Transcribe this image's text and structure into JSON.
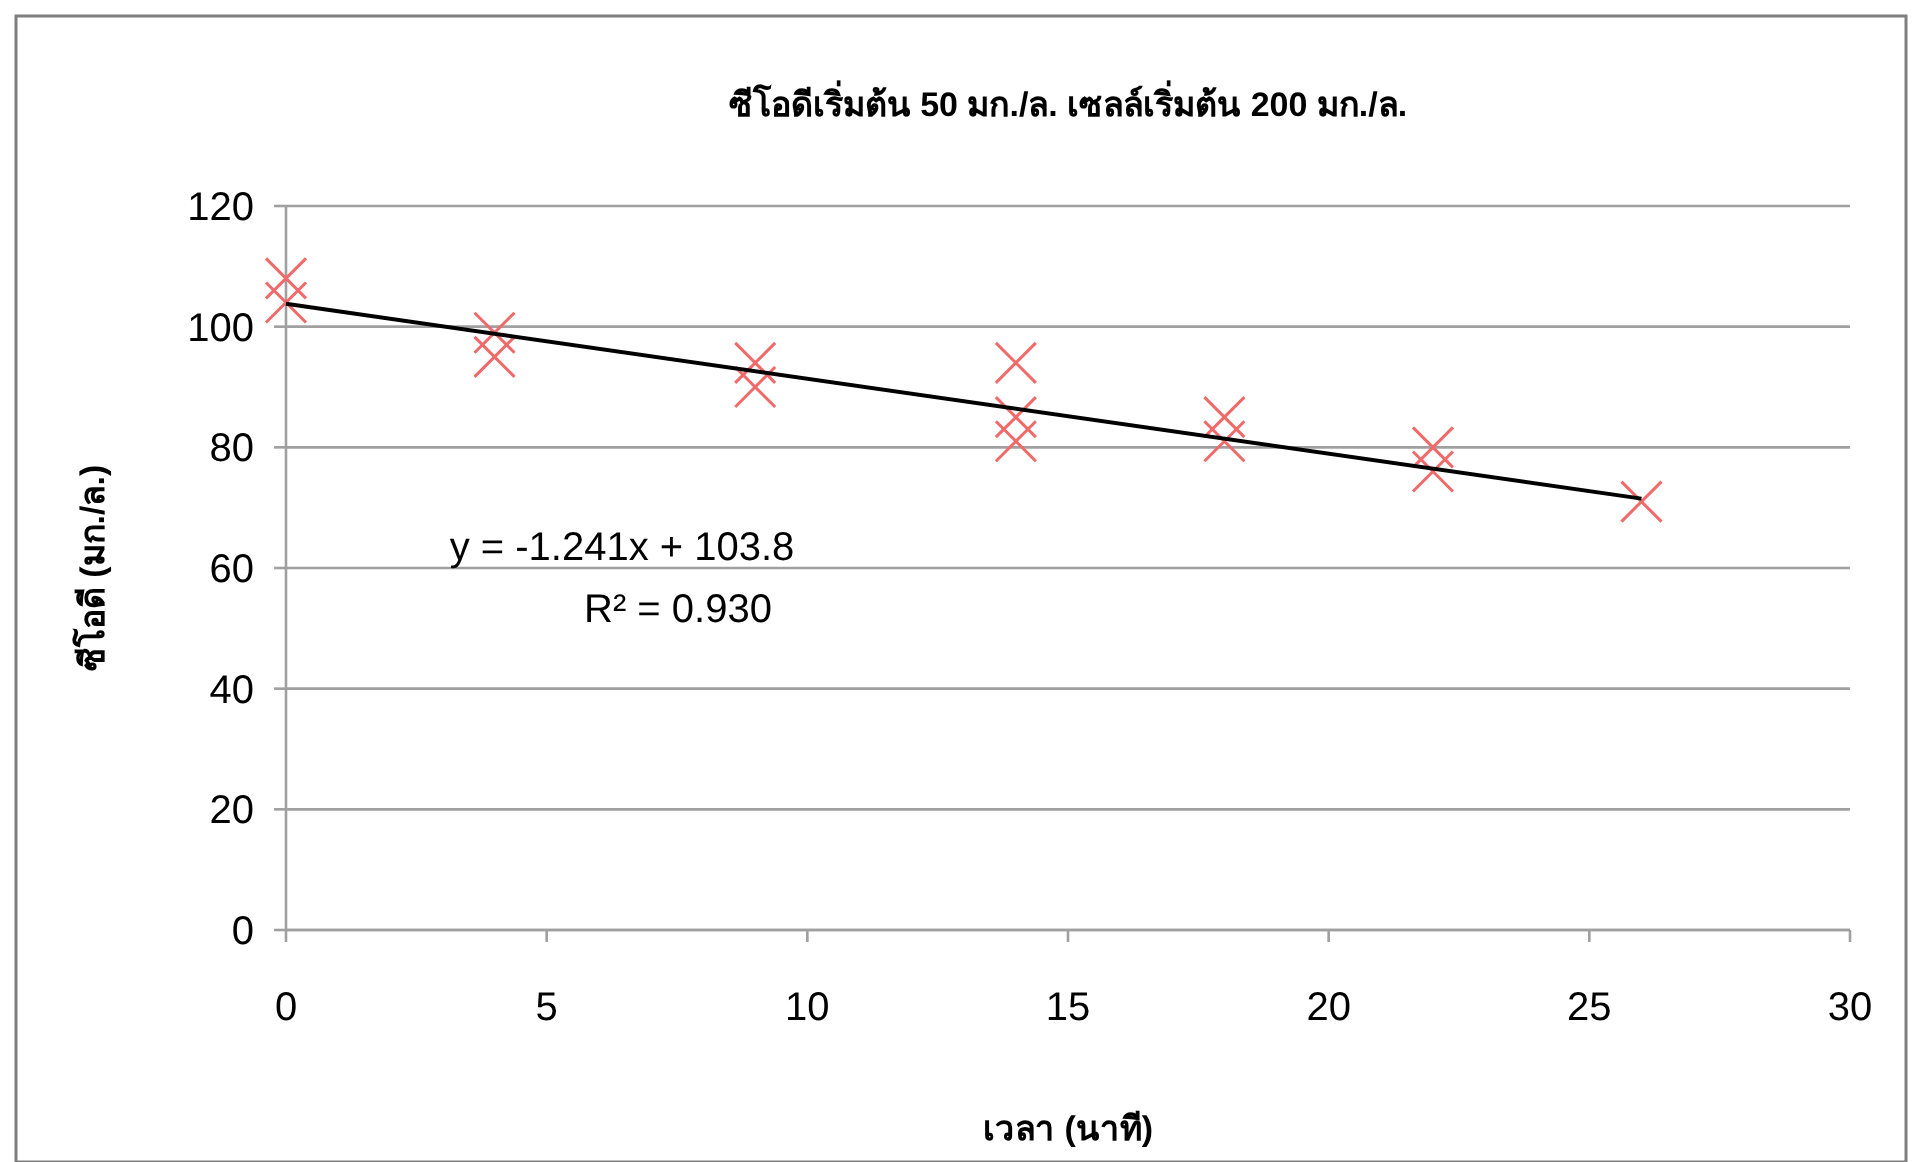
{
  "chart_data": {
    "type": "scatter",
    "title": "ซีโอดีเริ่มต้น 50 มก./ล. เซลล์เริ่มต้น 200 มก./ล.",
    "xlabel": "เวลา (นาที)",
    "ylabel": "ซีโอดี (มก./ล.)",
    "series": [
      {
        "color": "#f06a6a",
        "marker": "cross",
        "x": [
          0,
          0,
          4,
          4,
          9,
          9,
          14,
          14,
          14,
          18,
          18,
          22,
          22,
          26
        ],
        "values": [
          108,
          104,
          99,
          95,
          94,
          90,
          94,
          85,
          81,
          85,
          81,
          80,
          76,
          71
        ]
      },
      {
        "type": "line",
        "color": "#000000",
        "marker": "none",
        "line_style": "solid",
        "x": [
          0,
          26
        ],
        "values": [
          103.8,
          71.5
        ]
      }
    ],
    "annotations": [
      "y = -1.241x + 103.8",
      "R² = 0.930"
    ],
    "xlim": [
      0,
      30
    ],
    "xticks": [
      0,
      5,
      10,
      15,
      20,
      25,
      30
    ],
    "ylim": [
      0,
      120
    ],
    "yticks": [
      0,
      20,
      40,
      60,
      80,
      100,
      120
    ],
    "grid": "y"
  }
}
